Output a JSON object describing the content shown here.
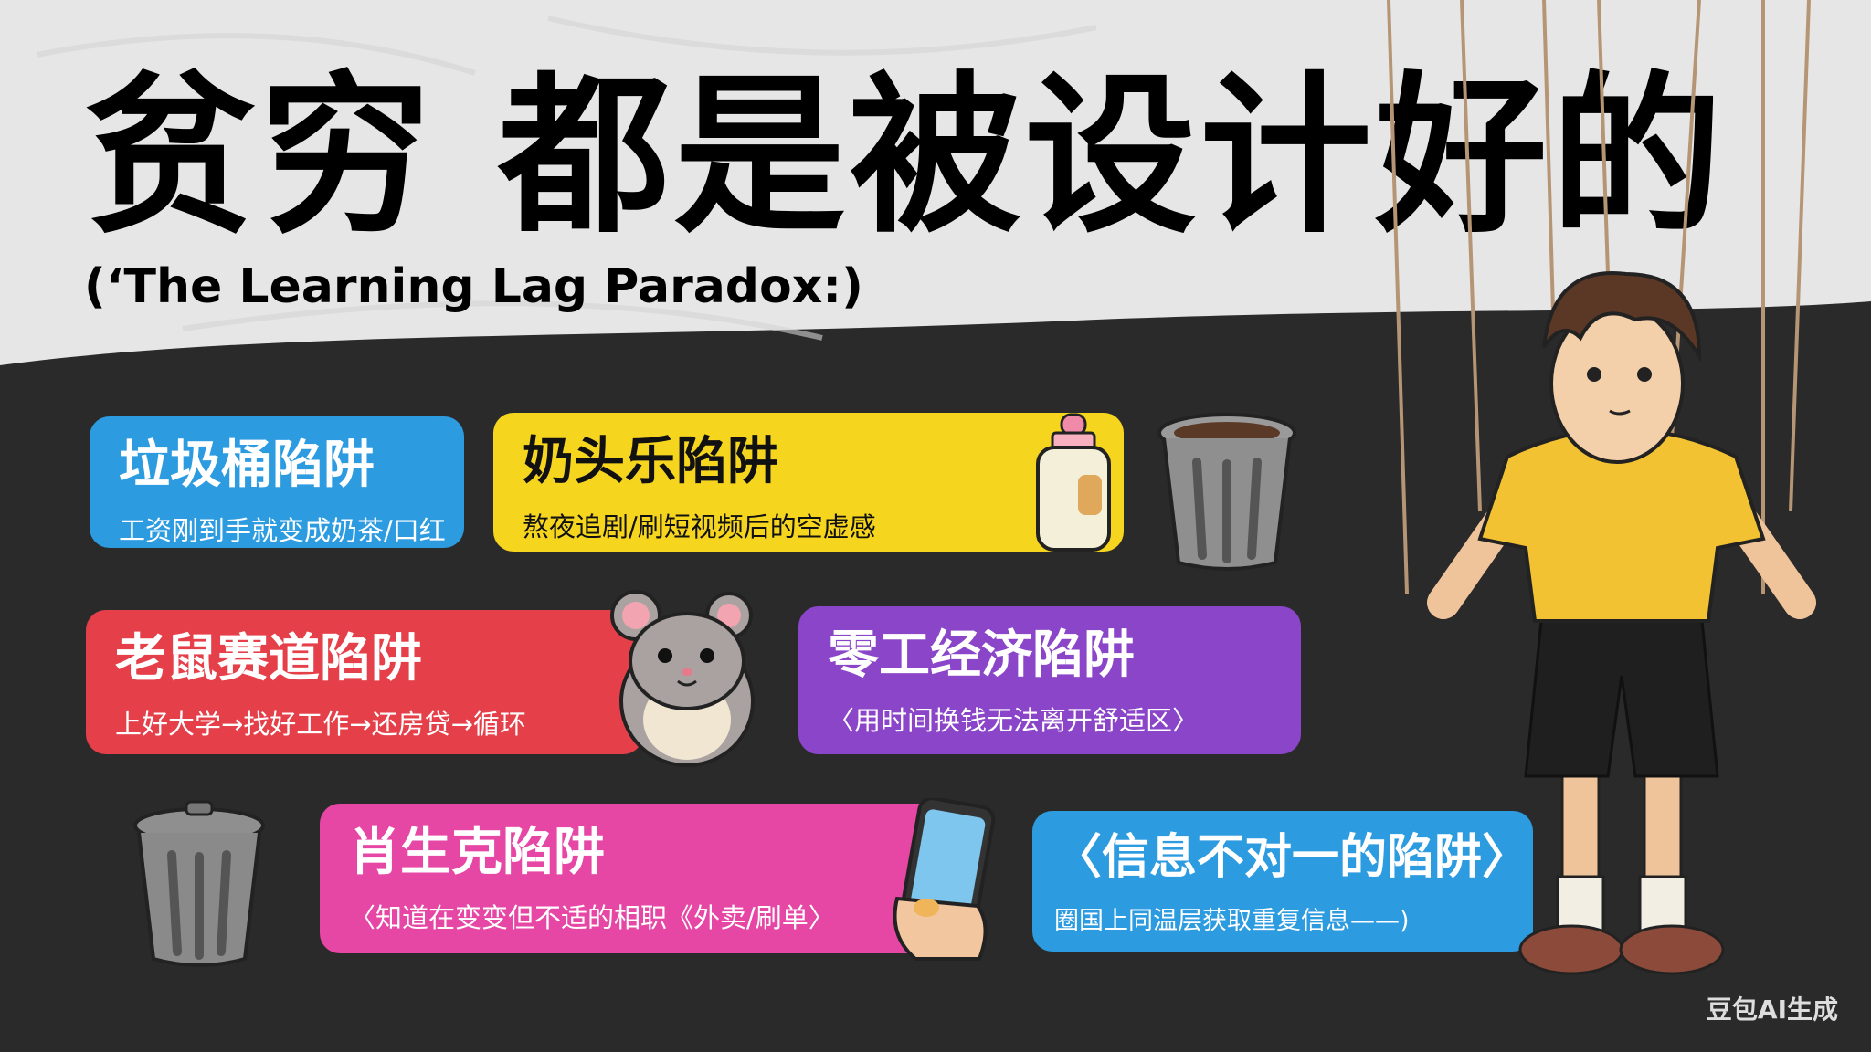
{
  "title": "贫穷 都是被设计好的",
  "subtitle": "(‘The Learning Lag Paradox:)",
  "watermark": "豆包AI生成",
  "cards": [
    {
      "title": "垃圾桶陷阱",
      "desc": "工资刚到手就变成奶茶/口红",
      "color": "#2d9be0"
    },
    {
      "title": "奶头乐陷阱",
      "desc": "熬夜追剧/刷短视频后的空虚感",
      "color": "#f6d51f"
    },
    {
      "title": "老鼠赛道陷阱",
      "desc": "上好大学→找好工作→还房贷→循环",
      "color": "#e5404a"
    },
    {
      "title": "零工经济陷阱",
      "desc": "〈用时间换钱无法离开舒适区〉",
      "color": "#8a45c8"
    },
    {
      "title": "肖生克陷阱",
      "desc": "〈知道在变变但不适的相职《外卖/刷单〉",
      "color": "#e646a4"
    },
    {
      "title": "〈信息不对一的陷阱〉",
      "desc": "圈国上同温层获取重复信息——)",
      "color": "#2d9be0"
    }
  ],
  "icons": [
    "trash-can-icon",
    "milk-bottle-icon",
    "hamster-icon",
    "smartphone-icon",
    "marionette-boy-illustration"
  ]
}
